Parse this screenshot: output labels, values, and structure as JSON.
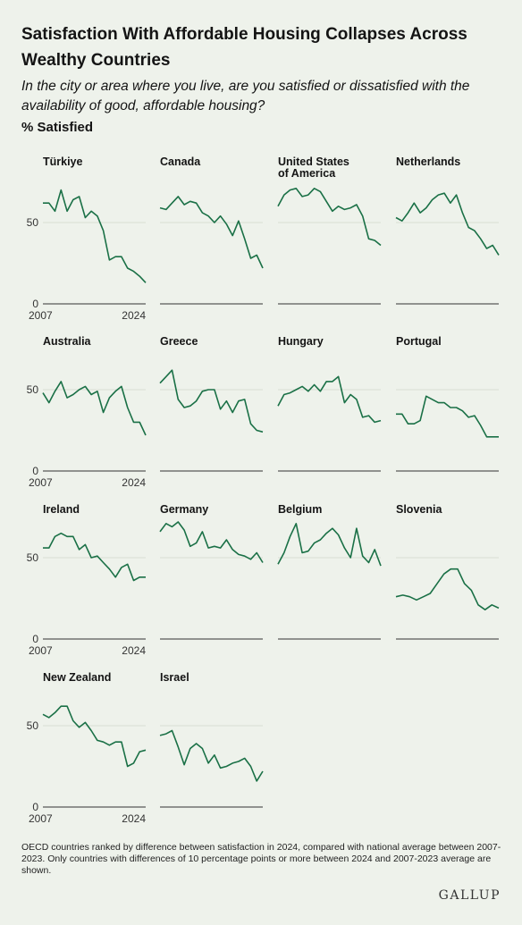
{
  "title": "Satisfaction With Affordable Housing Collapses Across Wealthy Countries",
  "subtitle": "In the city or area where you live, are you satisfied or dissatisfied with the availability of good, affordable housing?",
  "ylabel": "% Satisfied",
  "footnote": "OECD countries ranked by difference between satisfaction in 2024, compared with national average between 2007-2023. Only countries with differences of 10 percentage points or more between 2024 and 2007-2023 average are shown.",
  "brand": "GALLUP",
  "colors": {
    "line": "#1a7046",
    "background": "#eef2eb",
    "grid": "#d8ddd3",
    "axis": "#333333"
  },
  "chart_data": {
    "type": "line",
    "layout": "small-multiples",
    "x_start_label": "2007",
    "x_end_label": "2024",
    "y_ticks": [
      0,
      50
    ],
    "ylim": [
      0,
      90
    ],
    "grid": true,
    "series": [
      {
        "name": "Türkiye",
        "values": [
          62,
          62,
          57,
          70,
          57,
          64,
          66,
          53,
          57,
          54,
          45,
          27,
          29,
          29,
          22,
          20,
          17,
          13
        ]
      },
      {
        "name": "Canada",
        "values": [
          59,
          58,
          62,
          66,
          61,
          63,
          62,
          56,
          54,
          50,
          54,
          49,
          42,
          51,
          40,
          28,
          30,
          22
        ]
      },
      {
        "name": "United States of America",
        "values": [
          60,
          67,
          70,
          71,
          66,
          67,
          71,
          69,
          63,
          57,
          60,
          58,
          59,
          61,
          54,
          40,
          39,
          36
        ]
      },
      {
        "name": "Netherlands",
        "values": [
          53,
          51,
          56,
          62,
          56,
          59,
          64,
          67,
          68,
          62,
          67,
          56,
          47,
          45,
          40,
          34,
          36,
          30
        ]
      },
      {
        "name": "Australia",
        "values": [
          48,
          42,
          49,
          55,
          45,
          47,
          50,
          52,
          47,
          49,
          36,
          45,
          49,
          52,
          39,
          30,
          30,
          22
        ]
      },
      {
        "name": "Greece",
        "values": [
          54,
          58,
          62,
          44,
          39,
          40,
          43,
          49,
          50,
          50,
          38,
          43,
          36,
          43,
          44,
          29,
          25,
          24
        ]
      },
      {
        "name": "Hungary",
        "values": [
          40,
          47,
          48,
          50,
          52,
          49,
          53,
          49,
          55,
          55,
          58,
          42,
          47,
          44,
          33,
          34,
          30,
          31
        ]
      },
      {
        "name": "Portugal",
        "values": [
          35,
          35,
          29,
          29,
          31,
          46,
          44,
          42,
          42,
          39,
          39,
          37,
          33,
          34,
          28,
          21,
          21,
          21
        ]
      },
      {
        "name": "Ireland",
        "values": [
          56,
          56,
          63,
          65,
          63,
          63,
          55,
          58,
          50,
          51,
          47,
          43,
          38,
          44,
          46,
          36,
          38,
          38
        ]
      },
      {
        "name": "Germany",
        "values": [
          66,
          71,
          69,
          72,
          67,
          57,
          59,
          66,
          56,
          57,
          56,
          61,
          55,
          52,
          51,
          49,
          53,
          47
        ]
      },
      {
        "name": "Belgium",
        "values": [
          46,
          53,
          63,
          71,
          53,
          54,
          59,
          61,
          65,
          68,
          64,
          56,
          50,
          68,
          51,
          47,
          55,
          45
        ]
      },
      {
        "name": "Slovenia",
        "values": [
          26,
          27,
          26,
          24,
          26,
          28,
          34,
          40,
          43,
          43,
          34,
          30,
          21,
          18,
          21,
          19
        ]
      },
      {
        "name": "New Zealand",
        "values": [
          57,
          55,
          58,
          62,
          62,
          53,
          49,
          52,
          47,
          41,
          40,
          38,
          40,
          40,
          25,
          27,
          34,
          35
        ]
      },
      {
        "name": "Israel",
        "values": [
          44,
          45,
          47,
          37,
          26,
          36,
          39,
          36,
          27,
          32,
          24,
          25,
          27,
          28,
          30,
          25,
          16,
          22
        ]
      }
    ]
  }
}
